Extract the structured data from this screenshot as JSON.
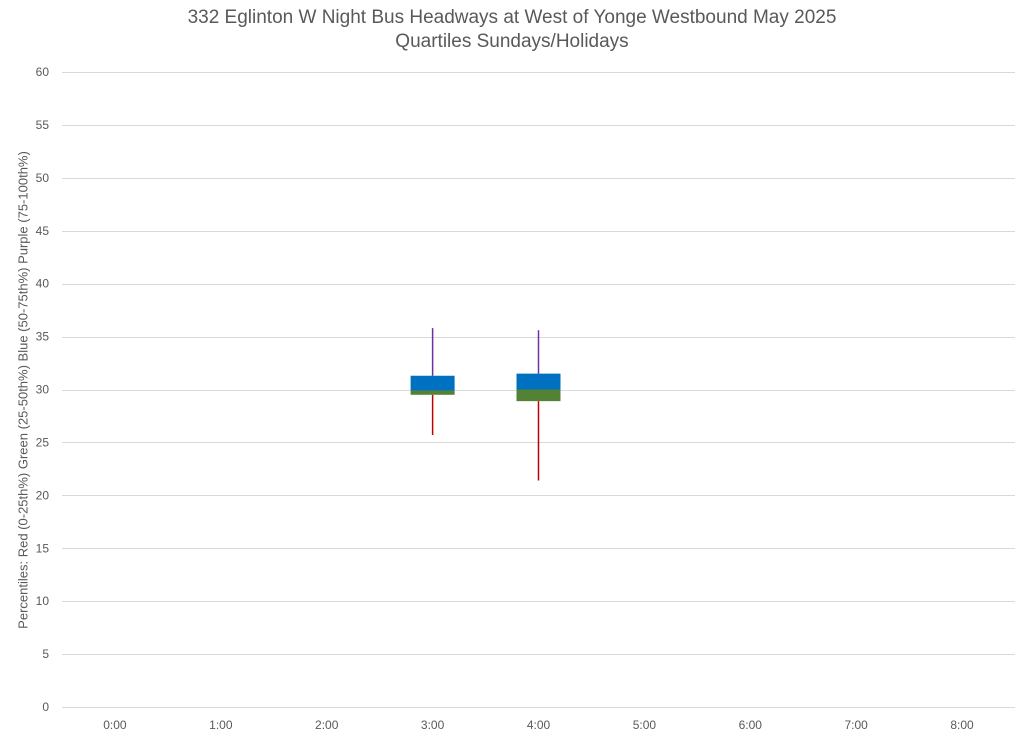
{
  "chart_data": {
    "type": "box",
    "title": "332 Eglinton W Night Bus Headways at West of Yonge Westbound May 2025",
    "subtitle": "Quartiles Sundays/Holidays",
    "ylabel": "Percentiles:  Red (0-25th%)  Green (25-50th%)  Blue (50-75th%)  Purple (75-100th%)",
    "xlabel": "",
    "ylim": [
      0,
      60
    ],
    "y_ticks": [
      0,
      5,
      10,
      15,
      20,
      25,
      30,
      35,
      40,
      45,
      50,
      55,
      60
    ],
    "categories": [
      "0:00",
      "1:00",
      "2:00",
      "3:00",
      "4:00",
      "5:00",
      "6:00",
      "7:00",
      "8:00"
    ],
    "grid": true,
    "colors": {
      "q1_whisker": "#c00000",
      "q2_box": "#548235",
      "q3_box": "#0070c0",
      "q4_whisker": "#7030a0",
      "grid": "#d9d9d9"
    },
    "boxes": [
      {
        "category": "3:00",
        "min": 25.7,
        "q1": 29.5,
        "median": 29.9,
        "q3": 31.3,
        "max": 35.8
      },
      {
        "category": "4:00",
        "min": 21.4,
        "q1": 28.9,
        "median": 30.0,
        "q3": 31.5,
        "max": 35.6
      }
    ]
  }
}
